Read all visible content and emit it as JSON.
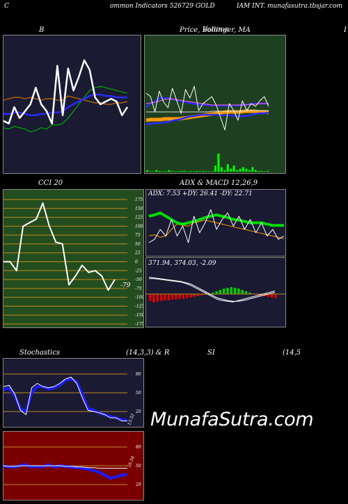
{
  "header": {
    "left": "C",
    "center": "ommon  Indicators 526729 GOLD",
    "right": "IAM INT. munafasutra.tbsjar.com"
  },
  "titles": {
    "bollinger": "B",
    "price": "Price,  Bollinger,  MA",
    "price_overlay": "Volume",
    "right_edge": "I",
    "cci": "CCI 20",
    "adx_macd": "ADX  & MACD 12,26,9",
    "stoch": "Stochastics",
    "stoch_params": "(14,3,3) & R",
    "rsi": "SI",
    "rsi_params": "(14,5"
  },
  "colors": {
    "dark_navy": "#1a1a33",
    "dark_green": "#1e4020",
    "cci_green": "#234d1e",
    "dark_red": "#7a0000",
    "green_line": "#00b000",
    "blue_line": "#1a1aff",
    "orange_line": "#d07000",
    "ma_orange": "#ff9900"
  },
  "chart_data": [
    {
      "id": "bollinger",
      "type": "line",
      "title": "B",
      "series": [
        {
          "values": [
            33,
            32,
            34,
            33,
            32,
            30,
            31,
            33,
            32,
            35,
            35,
            36,
            40,
            45,
            50,
            55,
            60,
            62,
            63,
            62,
            61,
            60,
            59,
            58
          ]
        },
        {
          "values": [
            43,
            43,
            44,
            44,
            43,
            42,
            42,
            43,
            43,
            44,
            44,
            45,
            48,
            50,
            52,
            54,
            56,
            57,
            57,
            56,
            56,
            55,
            55,
            55
          ]
        },
        {
          "values": [
            53,
            54,
            55,
            55,
            54,
            55,
            54,
            53,
            54,
            54,
            53,
            53,
            56,
            55,
            54,
            53,
            52,
            51,
            51,
            50,
            50,
            51,
            51,
            52
          ]
        },
        {
          "values": [
            38,
            36,
            48,
            40,
            45,
            50,
            62,
            50,
            45,
            36,
            78,
            42,
            76,
            60,
            70,
            82,
            75,
            55,
            50,
            52,
            54,
            52,
            42,
            48
          ]
        }
      ]
    },
    {
      "id": "price",
      "type": "line",
      "title": "Price,  Bollinger,  MA",
      "volume": [
        1,
        0.3,
        0.3,
        1,
        0.5,
        0.3,
        0.4,
        1,
        0.5,
        0.3,
        0.4,
        0.5,
        0.6,
        0.3,
        0.4,
        0.3,
        0.5,
        0.4,
        0.5,
        0.4,
        0.3,
        0.3,
        4,
        12,
        3,
        1,
        5,
        2,
        4,
        1,
        2,
        3,
        2,
        1,
        3,
        1,
        0.5,
        0.5,
        0.3,
        0.5
      ]
    },
    {
      "id": "cci",
      "type": "line",
      "title": "CCI 20",
      "yticks": [
        175,
        150,
        125,
        100,
        75,
        50,
        25,
        0,
        -25,
        -50,
        -75,
        -100,
        -125,
        -150,
        -175
      ],
      "values": [
        0,
        0,
        -25,
        100,
        110,
        120,
        165,
        100,
        55,
        50,
        -65,
        -40,
        -10,
        -30,
        -25,
        -40,
        -80,
        -50
      ],
      "last_label": "-79"
    },
    {
      "id": "adx",
      "type": "line",
      "label": "ADX: 7.53  +DY: 26.41  -DY: 22.71",
      "plus_di": 26.41,
      "minus_di": 22.71,
      "adx": 7.53
    },
    {
      "id": "macd",
      "type": "bar",
      "label": "371.94,  374.03,  -2.09",
      "macd": 371.94,
      "signal": 374.03,
      "hist": -2.09
    },
    {
      "id": "stochastics",
      "type": "line",
      "title": "Stochastics (14,3,3) & R",
      "yticks": [
        80,
        50,
        20
      ],
      "k": [
        60,
        62,
        48,
        22,
        15,
        58,
        65,
        60,
        58,
        60,
        65,
        72,
        75,
        65,
        42,
        22,
        20,
        18,
        15,
        10,
        10,
        5,
        5
      ],
      "d": [
        55,
        58,
        45,
        25,
        20,
        50,
        60,
        60,
        56,
        58,
        62,
        70,
        72,
        68,
        48,
        25,
        22,
        18,
        15,
        12,
        10,
        7,
        6
      ],
      "last_label": "13.52"
    },
    {
      "id": "rsi",
      "type": "line",
      "title": "SI (14,5",
      "yticks": [
        80,
        50,
        20
      ],
      "values": [
        50,
        48,
        48,
        50,
        52,
        48,
        49,
        48,
        52,
        48,
        50,
        49,
        48,
        47,
        46,
        45,
        42,
        40,
        35,
        30,
        32,
        35,
        36
      ],
      "slow": [
        50,
        49,
        49,
        50,
        50,
        50,
        50,
        50,
        50,
        50,
        50,
        49,
        49,
        48,
        48,
        47,
        47,
        46,
        46,
        46,
        46,
        46,
        46
      ],
      "last_label": "35.54"
    }
  ],
  "watermark": "MunafaSutra.com"
}
